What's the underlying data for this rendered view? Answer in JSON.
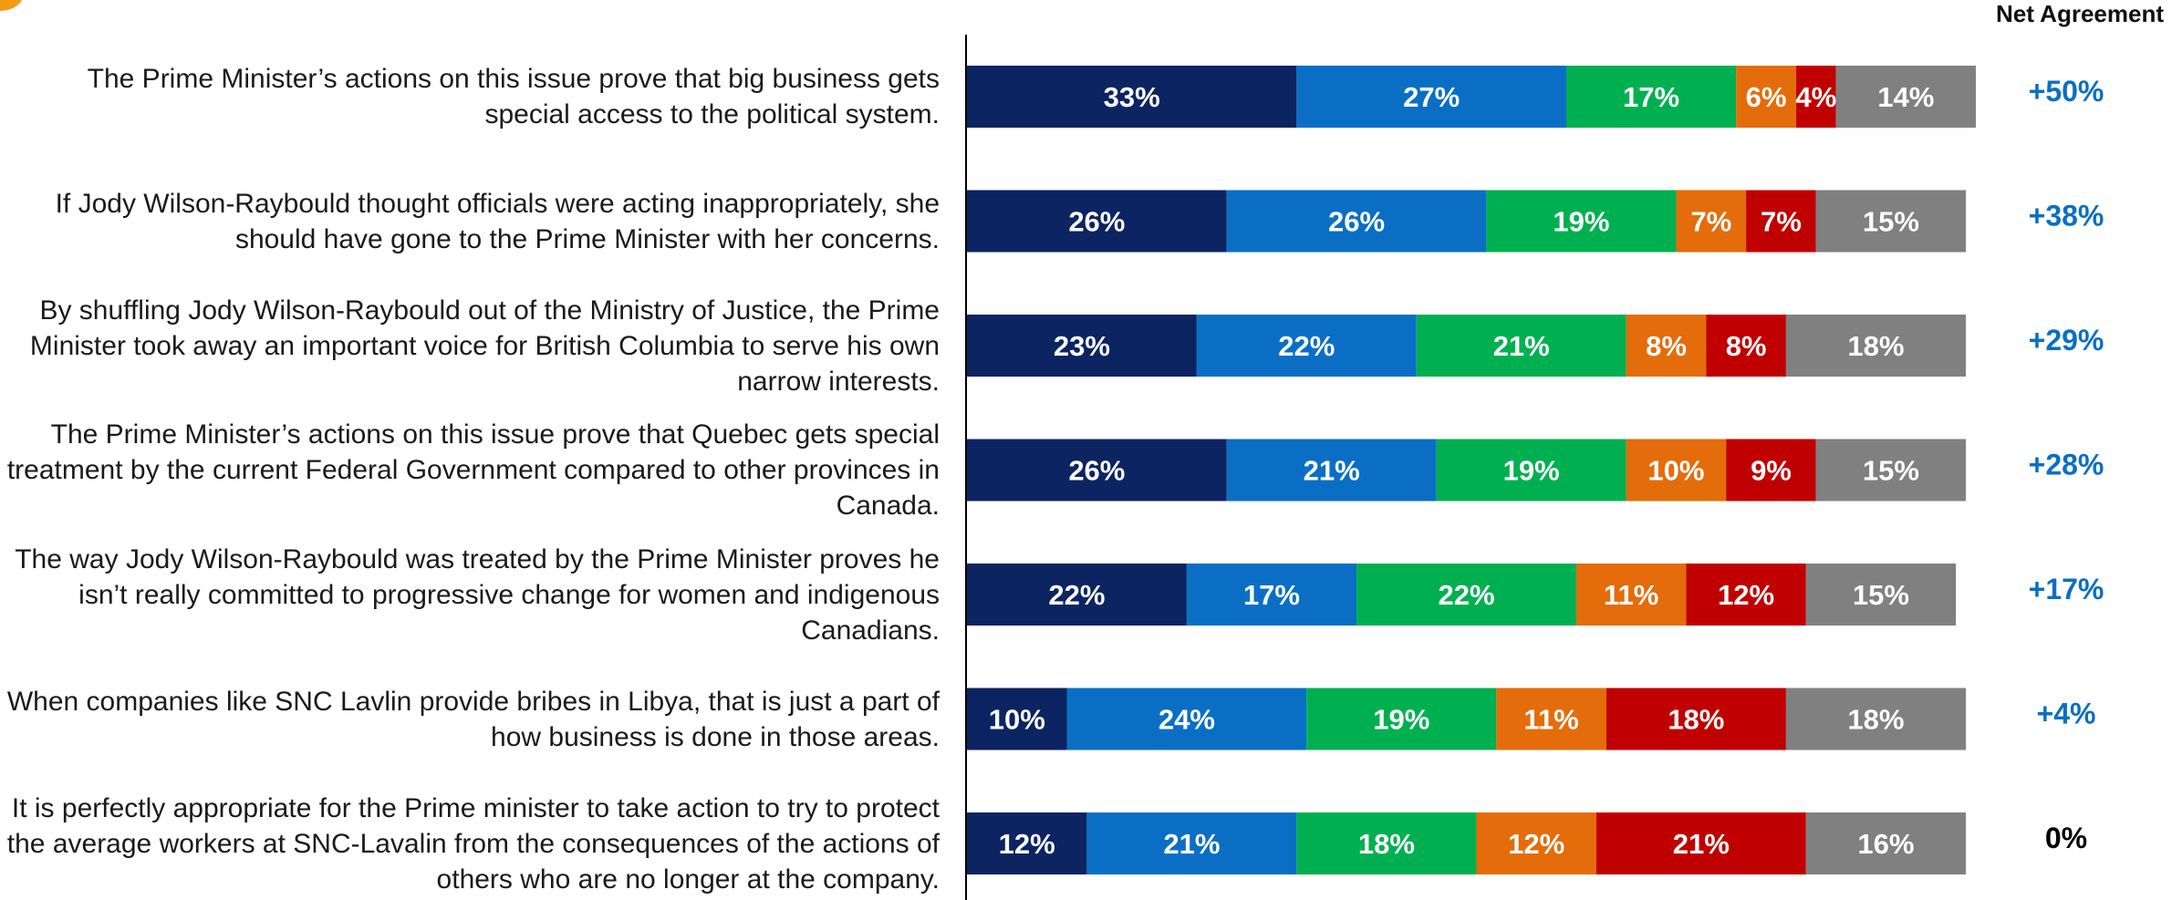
{
  "header": {
    "net_agreement_label": "Net Agreement"
  },
  "colors": {
    "strongly_agree": "#0c2461",
    "somewhat_agree": "#0a6fc4",
    "neutral": "#00b050",
    "somewhat_disagree": "#e46c0a",
    "strongly_disagree": "#c00000",
    "dont_know": "#808080",
    "net_positive": "#0a6fc4",
    "net_zero": "#000000",
    "badge": "#f39c12"
  },
  "chart_data": {
    "type": "bar",
    "orientation": "horizontal",
    "stacked": true,
    "categories": [
      "The Prime Minister’s actions on this issue prove that big business gets special access to the political system.",
      "If Jody Wilson-Raybould thought officials were acting inappropriately, she should have gone to the Prime Minister with her concerns.",
      "By shuffling Jody Wilson-Raybould out of the Ministry of Justice, the Prime Minister took away an important voice for British Columbia to serve his own narrow interests.",
      "The Prime Minister’s actions on this issue prove that Quebec gets special treatment by the current Federal Government compared to other provinces in Canada.",
      "The way Jody Wilson-Raybould was treated by the Prime Minister proves he isn’t really committed to progressive change for women and indigenous Canadians.",
      "When companies like SNC Lavlin provide bribes in Libya, that is just a part of how business is done in those areas.",
      "It is perfectly appropriate for the Prime minister to take action to try to protect the average workers at SNC-Lavalin from the consequences of the actions of others who are no longer at the company."
    ],
    "series": [
      {
        "values": [
          33,
          26,
          23,
          26,
          22,
          10,
          12
        ]
      },
      {
        "values": [
          27,
          26,
          22,
          21,
          17,
          24,
          21
        ]
      },
      {
        "values": [
          17,
          19,
          21,
          19,
          22,
          19,
          18
        ]
      },
      {
        "values": [
          6,
          7,
          8,
          10,
          11,
          11,
          12
        ]
      },
      {
        "values": [
          4,
          7,
          8,
          9,
          12,
          18,
          21
        ]
      },
      {
        "values": [
          14,
          15,
          18,
          15,
          15,
          18,
          16
        ]
      }
    ],
    "net_agreement": [
      "+50%",
      "+38%",
      "+29%",
      "+28%",
      "+17%",
      "+4%",
      "0%"
    ],
    "value_suffix": "%",
    "xlim": [
      0,
      100
    ],
    "legend": "none"
  }
}
